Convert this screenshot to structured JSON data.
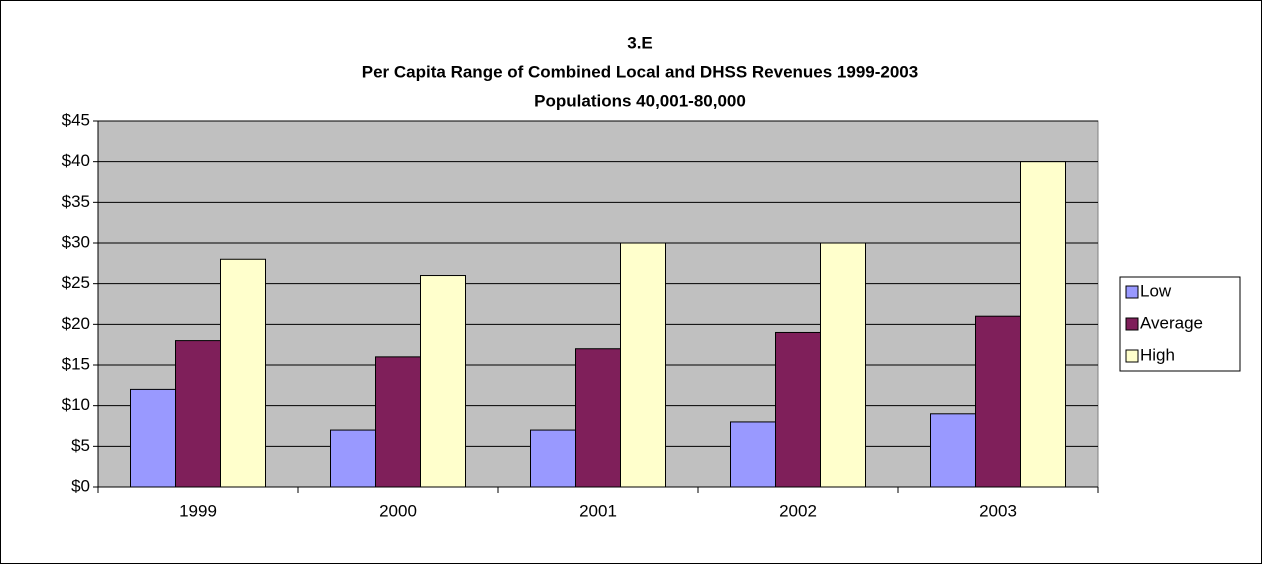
{
  "chart_data": {
    "type": "bar",
    "title": [
      "3.E",
      "Per Capita Range of Combined Local and DHSS Revenues 1999-2003",
      "Populations 40,001-80,000"
    ],
    "categories": [
      "1999",
      "2000",
      "2001",
      "2002",
      "2003"
    ],
    "series": [
      {
        "name": "Low",
        "color": "#9999FF",
        "values": [
          12,
          7,
          7,
          8,
          9
        ]
      },
      {
        "name": "Average",
        "color": "#7F1F5A",
        "values": [
          18,
          16,
          17,
          19,
          21
        ]
      },
      {
        "name": "High",
        "color": "#FFFFCC",
        "values": [
          28,
          26,
          30,
          30,
          40
        ]
      }
    ],
    "ylim": [
      0,
      45
    ],
    "yticks": [
      {
        "value": 0,
        "label": "$0"
      },
      {
        "value": 5,
        "label": "$5"
      },
      {
        "value": 10,
        "label": "$10"
      },
      {
        "value": 15,
        "label": "$15"
      },
      {
        "value": 20,
        "label": "$20"
      },
      {
        "value": 25,
        "label": "$25"
      },
      {
        "value": 30,
        "label": "$30"
      },
      {
        "value": 35,
        "label": "$35"
      },
      {
        "value": 40,
        "label": "$40"
      },
      {
        "value": 45,
        "label": "$45"
      }
    ],
    "grid": true,
    "plot_background": "#C0C0C0",
    "legend": "right"
  }
}
